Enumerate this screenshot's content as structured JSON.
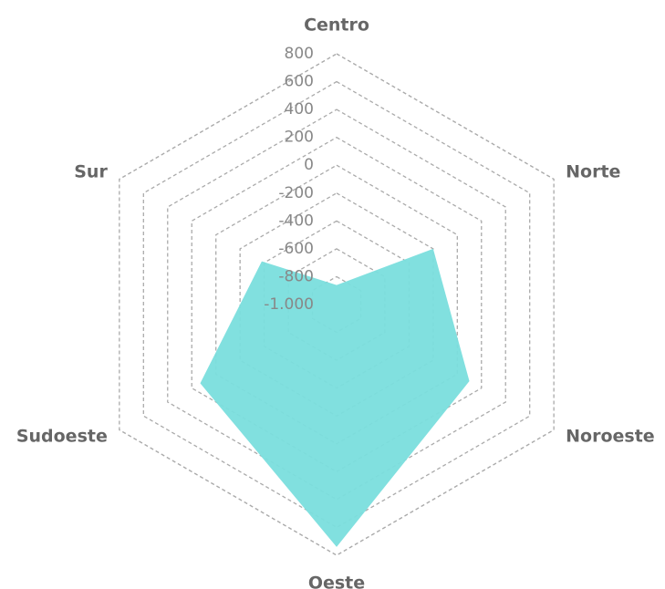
{
  "chart_data": {
    "type": "radar",
    "categories": [
      "Centro",
      "Norte",
      "Noroeste",
      "Oeste",
      "Sudoeste",
      "Sur"
    ],
    "values": [
      -860,
      -200,
      100,
      740,
      130,
      -380
    ],
    "color": "#7adedd",
    "ylim": [
      -1000,
      800
    ],
    "yticks": [
      {
        "value": -1000,
        "label": "-1.000"
      },
      -800,
      -600,
      -400,
      -200,
      0,
      200,
      400,
      600,
      800
    ]
  }
}
